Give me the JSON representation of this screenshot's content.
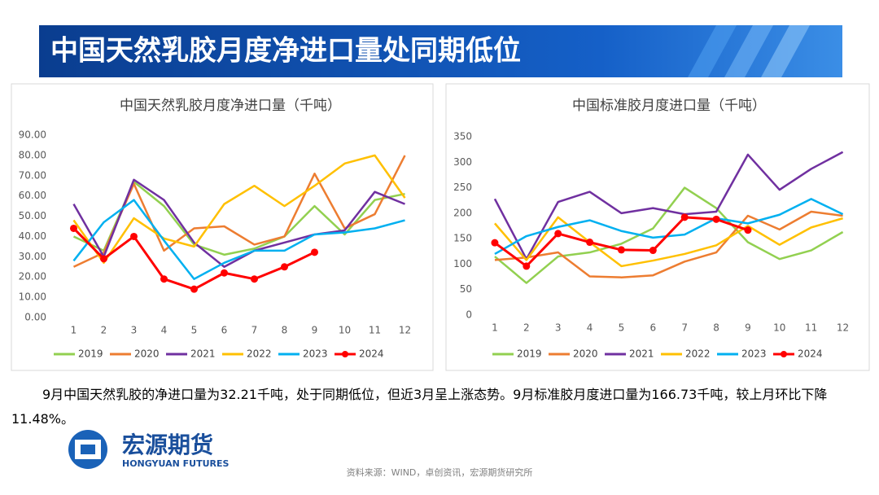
{
  "title": "中国天然乳胶月度净进口量处同期低位",
  "chart_data": [
    {
      "type": "line",
      "title": "中国天然乳胶月度净进口量（千吨）",
      "categories": [
        "1",
        "2",
        "3",
        "4",
        "5",
        "6",
        "7",
        "8",
        "9",
        "10",
        "11",
        "12"
      ],
      "ylim": [
        0,
        90
      ],
      "yticks": [
        {
          "value": 0,
          "label": "0.00"
        },
        {
          "value": 10,
          "label": "10.00"
        },
        {
          "value": 20,
          "label": "20.00"
        },
        {
          "value": 30,
          "label": "30.00"
        },
        {
          "value": 40,
          "label": "40.00"
        },
        {
          "value": 50,
          "label": "50.00"
        },
        {
          "value": 60,
          "label": "60.00"
        },
        {
          "value": 70,
          "label": "70.00"
        },
        {
          "value": 80,
          "label": "80.00"
        },
        {
          "value": 90,
          "label": "90.00"
        }
      ],
      "series": [
        {
          "name": "2019",
          "color": "#92d050",
          "values": [
            40,
            33,
            67,
            55,
            36,
            31,
            34,
            40,
            55,
            41,
            58,
            61
          ]
        },
        {
          "name": "2020",
          "color": "#ed7d31",
          "values": [
            25,
            32,
            66,
            33,
            44,
            45,
            36,
            40,
            71,
            44,
            51,
            80
          ]
        },
        {
          "name": "2021",
          "color": "#7030a0",
          "values": [
            56,
            30,
            68,
            58,
            37,
            25,
            33,
            37,
            41,
            43,
            62,
            56
          ]
        },
        {
          "name": "2022",
          "color": "#ffc000",
          "values": [
            48,
            27,
            49,
            39,
            35,
            56,
            65,
            55,
            65,
            76,
            80,
            59
          ]
        },
        {
          "name": "2023",
          "color": "#00b0f0",
          "values": [
            28,
            47,
            58,
            38,
            19,
            27,
            33,
            33,
            41,
            42,
            44,
            48
          ]
        },
        {
          "name": "2024",
          "color": "#ff0000",
          "marker": true,
          "values": [
            44,
            29,
            40,
            19,
            14,
            22,
            19,
            25,
            32.21,
            null,
            null,
            null
          ]
        }
      ]
    },
    {
      "type": "line",
      "title": "中国标准胶月度进口量（千吨）",
      "categories": [
        "1",
        "2",
        "3",
        "4",
        "5",
        "6",
        "7",
        "8",
        "9",
        "10",
        "11",
        "12"
      ],
      "ylim": [
        0,
        350
      ],
      "yticks": [
        0,
        50,
        100,
        150,
        200,
        250,
        300,
        350
      ],
      "series": [
        {
          "name": "2019",
          "color": "#92d050",
          "values": [
            115,
            63,
            115,
            123,
            140,
            170,
            250,
            210,
            143,
            110,
            127,
            163
          ]
        },
        {
          "name": "2020",
          "color": "#ed7d31",
          "values": [
            108,
            113,
            123,
            76,
            74,
            78,
            105,
            123,
            195,
            168,
            203,
            195
          ]
        },
        {
          "name": "2021",
          "color": "#7030a0",
          "values": [
            228,
            110,
            222,
            242,
            200,
            210,
            198,
            203,
            315,
            246,
            287,
            320
          ]
        },
        {
          "name": "2022",
          "color": "#ffc000",
          "values": [
            180,
            108,
            192,
            143,
            96,
            107,
            120,
            137,
            175,
            138,
            172,
            190
          ]
        },
        {
          "name": "2023",
          "color": "#00b0f0",
          "values": [
            120,
            155,
            173,
            186,
            165,
            152,
            158,
            190,
            180,
            197,
            228,
            198
          ]
        },
        {
          "name": "2024",
          "color": "#ff0000",
          "marker": true,
          "values": [
            142,
            96,
            160,
            143,
            128,
            127,
            192,
            188,
            166.73,
            null,
            null,
            null
          ]
        }
      ]
    }
  ],
  "caption": "9月中国天然乳胶的净进口量为32.21千吨，处于同期低位，但近3月呈上涨态势。9月标准胶月度进口量为166.73千吨，较上月环比下降11.48%。",
  "logo": {
    "name": "宏源期货",
    "english": "HONGYUAN FUTURES"
  },
  "source": "资料来源：WIND，卓创资讯，宏源期货研究所"
}
